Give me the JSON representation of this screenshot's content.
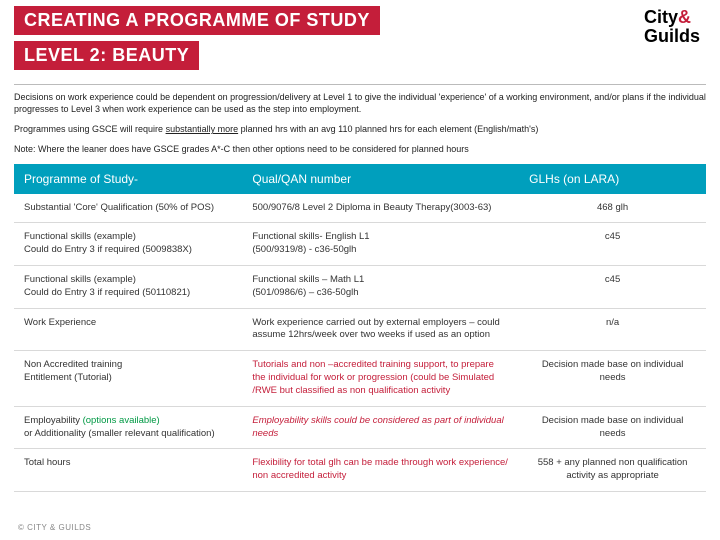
{
  "title1": "CREATING A PROGRAMME OF STUDY",
  "title2": "LEVEL 2: BEAUTY",
  "logo_line1": "City",
  "logo_amp": "&",
  "logo_line2": "Guilds",
  "intro1": "Decisions on work experience could be dependent on progression/delivery at Level 1 to give the individual 'experience' of a working environment, and/or plans if the individual progresses to Level 3 when work experience can be used as the step into employment.",
  "intro2a": "Programmes using GSCE will require ",
  "intro2b": "substantially more",
  "intro2c": " planned hrs with an avg 110 planned hrs for each element (English/math's)",
  "intro3": "Note: Where the leaner does have GSCE grades A*-C then other options need to be considered for planned hours",
  "headers": {
    "c1": "Programme of Study-",
    "c2": "Qual/QAN number",
    "c3": "GLHs (on LARA)"
  },
  "rows": [
    {
      "c1": "Substantial 'Core' Qualification (50% of POS)",
      "c2": "500/9076/8 Level 2 Diploma in Beauty Therapy(3003-63)",
      "c3": "468 glh"
    },
    {
      "c1a": "Functional skills (example)",
      "c1b": "Could do Entry 3 if required (5009838X)",
      "c2a": "Functional skills- English L1",
      "c2b": "(500/9319/8) - c36-50glh",
      "c3": "c45"
    },
    {
      "c1a": "Functional skills (example)",
      "c1b": "Could do Entry 3 if required (50110821)",
      "c2a": "Functional skills –   Math L1",
      "c2b": "(501/0986/6) – c36-50glh",
      "c3": "c45"
    },
    {
      "c1": "Work Experience",
      "c2": "Work  experience carried out by external employers – could assume 12hrs/week over two weeks if used as an option",
      "c3": "n/a"
    },
    {
      "c1a": "Non Accredited training",
      "c1b": "Entitlement (Tutorial)",
      "c2": "Tutorials and non –accredited training support,  to prepare the individual for work or progression (could be Simulated /RWE but classified as non qualification activity",
      "c3": "Decision made base on individual needs"
    },
    {
      "c1a": "Employability ",
      "c1b": "(options available)",
      "c1c": "or Additionality (smaller relevant qualification)",
      "c2": "Employability skills could be considered as part of individual needs",
      "c3": "Decision made base on individual needs"
    },
    {
      "c1": "Total hours",
      "c2": "Flexibility for total glh can be made through work experience/ non accredited activity",
      "c3": "558 + any planned non qualification activity as appropriate"
    }
  ],
  "footer": "© CITY & GUILDS",
  "colors": {
    "brand_red": "#c41e3a",
    "teal": "#009fbd",
    "green": "#009944"
  }
}
